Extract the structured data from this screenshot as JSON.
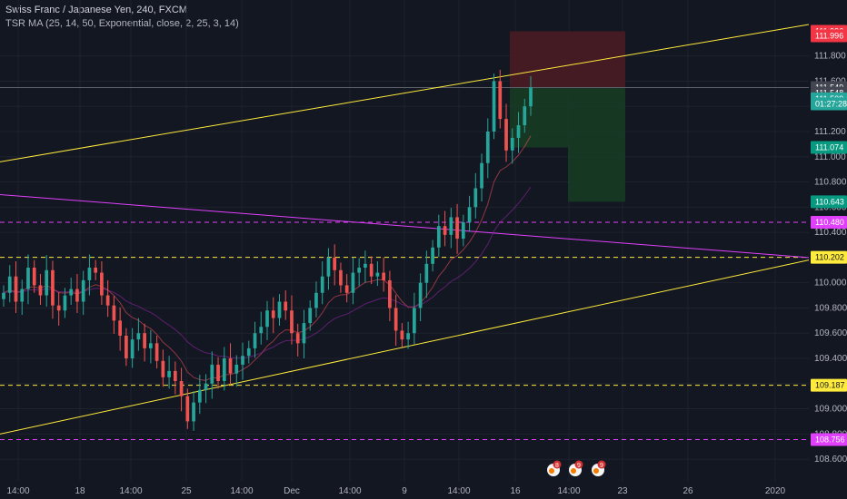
{
  "header": {
    "title": "Swiss Franc / Japanese Yen, 240, FXCM",
    "indicator": "TSR MA (25, 14, 50, Exponential, close, 2, 25, 3, 14)"
  },
  "colors": {
    "background": "#131722",
    "up": "#26a69a",
    "down": "#ef5350",
    "yellow": "#ffeb3b",
    "magenta": "#e040fb",
    "stop_zone": "#4a1b24",
    "target_zone": "#163a24"
  },
  "chart_data": {
    "type": "candlestick",
    "y_range": [
      108.5,
      112.1
    ],
    "y_ticks": [
      "111.800",
      "111.600",
      "111.400",
      "111.200",
      "111.000",
      "110.800",
      "110.600",
      "110.400",
      "110.200",
      "110.000",
      "109.800",
      "109.600",
      "109.400",
      "109.200",
      "109.000",
      "108.800",
      "108.600"
    ],
    "x_ticks": [
      "14:00",
      "18",
      "14:00",
      "25",
      "14:00",
      "Dec",
      "14:00",
      "9",
      "14:00",
      "16",
      "14:00",
      "23",
      "26",
      "2020"
    ],
    "closes": [
      109.92,
      110.05,
      109.85,
      109.95,
      110.12,
      109.98,
      109.9,
      110.1,
      109.82,
      109.78,
      109.9,
      109.95,
      109.85,
      110.02,
      110.12,
      110.08,
      109.9,
      109.82,
      109.7,
      109.58,
      109.4,
      109.55,
      109.6,
      109.48,
      109.52,
      109.38,
      109.25,
      109.3,
      109.22,
      109.1,
      108.9,
      109.05,
      109.15,
      109.2,
      109.35,
      109.22,
      109.4,
      109.28,
      109.35,
      109.42,
      109.48,
      109.6,
      109.65,
      109.78,
      109.72,
      109.85,
      109.78,
      109.6,
      109.52,
      109.68,
      109.8,
      109.92,
      110.05,
      110.2,
      110.1,
      109.98,
      109.92,
      110.08,
      110.12,
      110.15,
      110.05,
      110.08,
      110.02,
      109.8,
      109.62,
      109.55,
      109.6,
      109.8,
      110.0,
      110.15,
      110.28,
      110.45,
      110.38,
      110.52,
      110.35,
      110.48,
      110.6,
      110.75,
      110.95,
      111.2,
      111.6,
      111.3,
      111.05,
      111.15,
      111.25,
      111.4,
      111.55
    ],
    "price_tags": [
      {
        "label": "111.996",
        "value": 111.996,
        "color": "#f23645"
      },
      {
        "label": "111.996",
        "value": 111.96,
        "color": "#f23645"
      },
      {
        "label": "111.549",
        "value": 111.549,
        "color": "#434651"
      },
      {
        "label": "111.548",
        "value": 111.505,
        "color": "#434651"
      },
      {
        "label": "111.509",
        "value": 111.46,
        "color": "#26a69a"
      },
      {
        "label": "01:27:28",
        "value": 111.42,
        "color": "#26a69a"
      },
      {
        "label": "111.074",
        "value": 111.074,
        "color": "#089981"
      },
      {
        "label": "110.643",
        "value": 110.643,
        "color": "#089981"
      },
      {
        "label": "110.480",
        "value": 110.48,
        "color": "#e040fb"
      },
      {
        "label": "110.202",
        "value": 110.202,
        "color": "#ffeb3b"
      },
      {
        "label": "109.187",
        "value": 109.187,
        "color": "#ffeb3b"
      },
      {
        "label": "108.756",
        "value": 108.756,
        "color": "#e040fb"
      }
    ],
    "horizontal_levels": [
      {
        "value": 110.48,
        "color": "#e040fb"
      },
      {
        "value": 110.202,
        "color": "#ffeb3b"
      },
      {
        "value": 109.187,
        "color": "#ffeb3b"
      },
      {
        "value": 108.756,
        "color": "#e040fb"
      }
    ],
    "channel_lines": [
      {
        "x": [
          "14:00",
          "2020"
        ],
        "y": [
          110.96,
          112.05
        ],
        "color": "#ffeb3b"
      },
      {
        "x": [
          "14:00",
          "2020"
        ],
        "y": [
          108.8,
          110.18
        ],
        "color": "#ffeb3b"
      },
      {
        "x": [
          "14:00",
          "2020"
        ],
        "y": [
          110.7,
          110.2
        ],
        "color": "#e040fb"
      }
    ],
    "position": {
      "entry": 111.549,
      "stop": 111.996,
      "target_1": 111.074,
      "target_2": 110.643
    },
    "event_markers": [
      "8",
      "9",
      "9"
    ]
  }
}
